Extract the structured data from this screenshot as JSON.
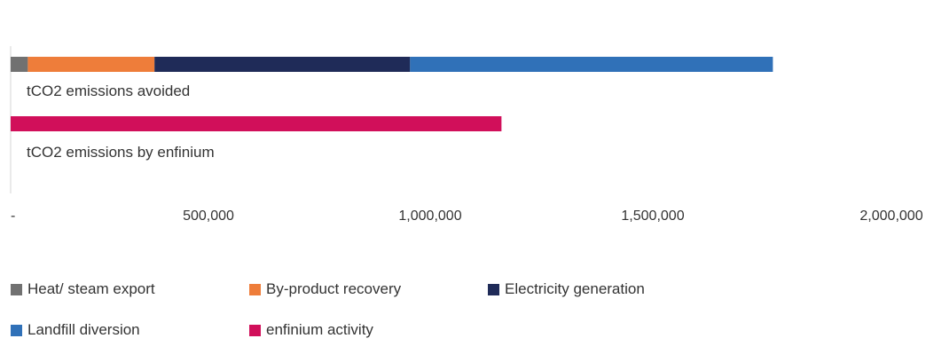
{
  "chart_data": {
    "type": "bar",
    "orientation": "horizontal",
    "stacked": true,
    "categories": [
      "tCO2 emissions avoided",
      "tCO2 emissions by enfinium"
    ],
    "series": [
      {
        "name": "Heat/ steam export",
        "color": "#717171",
        "values": [
          38000,
          0
        ]
      },
      {
        "name": "By-product recovery",
        "color": "#ee7d3a",
        "values": [
          280000,
          0
        ]
      },
      {
        "name": "Electricity generation",
        "color": "#1f2b58",
        "values": [
          565000,
          0
        ]
      },
      {
        "name": "Landfill diversion",
        "color": "#3071b8",
        "values": [
          802000,
          0
        ]
      },
      {
        "name": "enfinium activity",
        "color": "#d10f5a",
        "values": [
          0,
          1085000
        ]
      }
    ],
    "x_ticks": [
      "-",
      "500,000",
      "1,000,000",
      "1,500,000",
      "2,000,000"
    ],
    "xlim": [
      0,
      2000000
    ],
    "grid": false,
    "legend_position": "bottom"
  }
}
